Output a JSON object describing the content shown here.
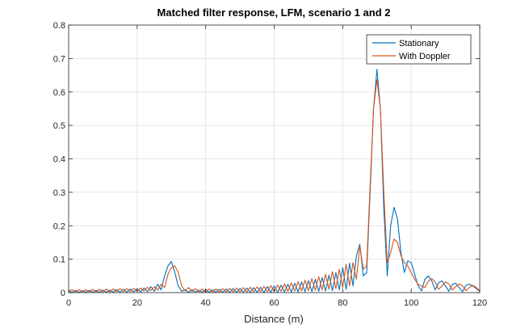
{
  "chart_data": {
    "type": "line",
    "title": "Matched filter response, LFM, scenario 1 and 2",
    "xlabel": "Distance (m)",
    "ylabel": "",
    "xlim": [
      0,
      120
    ],
    "ylim": [
      0,
      0.8
    ],
    "xticks": [
      0,
      20,
      40,
      60,
      80,
      100,
      120
    ],
    "yticks": [
      0,
      0.1,
      0.2,
      0.3,
      0.4,
      0.5,
      0.6,
      0.7,
      0.8
    ],
    "xtick_labels": [
      "0",
      "20",
      "40",
      "60",
      "80",
      "100",
      "120"
    ],
    "ytick_labels": [
      "0",
      "0.1",
      "0.2",
      "0.3",
      "0.4",
      "0.5",
      "0.6",
      "0.7",
      "0.8"
    ],
    "grid": true,
    "legend_position": "top-right",
    "series": [
      {
        "name": "Stationary",
        "color": "#0072BD",
        "points": [
          [
            0,
            0.005
          ],
          [
            1,
            0.001
          ],
          [
            2,
            0.006
          ],
          [
            3,
            0.001
          ],
          [
            4,
            0.006
          ],
          [
            5,
            0.001
          ],
          [
            6,
            0.007
          ],
          [
            7,
            0.001
          ],
          [
            8,
            0.007
          ],
          [
            9,
            0.001
          ],
          [
            10,
            0.008
          ],
          [
            11,
            0.001
          ],
          [
            12,
            0.008
          ],
          [
            13,
            0.001
          ],
          [
            14,
            0.009
          ],
          [
            15,
            0.001
          ],
          [
            16,
            0.01
          ],
          [
            17,
            0.001
          ],
          [
            18,
            0.011
          ],
          [
            19,
            0.002
          ],
          [
            20,
            0.012
          ],
          [
            21,
            0.002
          ],
          [
            22,
            0.014
          ],
          [
            23,
            0.003
          ],
          [
            24,
            0.018
          ],
          [
            25,
            0.004
          ],
          [
            26,
            0.025
          ],
          [
            27,
            0.008
          ],
          [
            28,
            0.05
          ],
          [
            29,
            0.08
          ],
          [
            30,
            0.093
          ],
          [
            31,
            0.06
          ],
          [
            32,
            0.02
          ],
          [
            33,
            0.004
          ],
          [
            34,
            0.008
          ],
          [
            35,
            0.001
          ],
          [
            36,
            0.009
          ],
          [
            37,
            0.001
          ],
          [
            38,
            0.008
          ],
          [
            39,
            0.001
          ],
          [
            40,
            0.009
          ],
          [
            41,
            0.001
          ],
          [
            42,
            0.009
          ],
          [
            43,
            0.001
          ],
          [
            44,
            0.01
          ],
          [
            45,
            0.001
          ],
          [
            46,
            0.011
          ],
          [
            47,
            0.001
          ],
          [
            48,
            0.012
          ],
          [
            49,
            0.001
          ],
          [
            50,
            0.013
          ],
          [
            51,
            0.001
          ],
          [
            52,
            0.014
          ],
          [
            53,
            0.001
          ],
          [
            54,
            0.015
          ],
          [
            55,
            0.001
          ],
          [
            56,
            0.016
          ],
          [
            57,
            0.001
          ],
          [
            58,
            0.018
          ],
          [
            59,
            0.001
          ],
          [
            60,
            0.02
          ],
          [
            61,
            0.001
          ],
          [
            62,
            0.022
          ],
          [
            63,
            0.002
          ],
          [
            64,
            0.025
          ],
          [
            65,
            0.002
          ],
          [
            66,
            0.028
          ],
          [
            67,
            0.002
          ],
          [
            68,
            0.032
          ],
          [
            69,
            0.003
          ],
          [
            70,
            0.036
          ],
          [
            71,
            0.003
          ],
          [
            72,
            0.04
          ],
          [
            73,
            0.004
          ],
          [
            74,
            0.045
          ],
          [
            75,
            0.005
          ],
          [
            76,
            0.052
          ],
          [
            77,
            0.006
          ],
          [
            78,
            0.06
          ],
          [
            79,
            0.008
          ],
          [
            80,
            0.075
          ],
          [
            81,
            0.01
          ],
          [
            82,
            0.088
          ],
          [
            83,
            0.02
          ],
          [
            84,
            0.11
          ],
          [
            85,
            0.145
          ],
          [
            86,
            0.05
          ],
          [
            87,
            0.06
          ],
          [
            88,
            0.3
          ],
          [
            89,
            0.55
          ],
          [
            90,
            0.668
          ],
          [
            91,
            0.55
          ],
          [
            92,
            0.25
          ],
          [
            93,
            0.05
          ],
          [
            94,
            0.2
          ],
          [
            95,
            0.255
          ],
          [
            96,
            0.22
          ],
          [
            97,
            0.12
          ],
          [
            98,
            0.06
          ],
          [
            99,
            0.095
          ],
          [
            100,
            0.09
          ],
          [
            101,
            0.055
          ],
          [
            102,
            0.02
          ],
          [
            103,
            0.005
          ],
          [
            104,
            0.04
          ],
          [
            105,
            0.05
          ],
          [
            106,
            0.035
          ],
          [
            107,
            0.008
          ],
          [
            108,
            0.03
          ],
          [
            109,
            0.035
          ],
          [
            110,
            0.02
          ],
          [
            111,
            0.004
          ],
          [
            112,
            0.025
          ],
          [
            113,
            0.028
          ],
          [
            114,
            0.015
          ],
          [
            115,
            0.003
          ],
          [
            116,
            0.022
          ],
          [
            117,
            0.025
          ],
          [
            118,
            0.02
          ],
          [
            119,
            0.012
          ],
          [
            120,
            0.004
          ]
        ]
      },
      {
        "name": "With Doppler",
        "color": "#D95319",
        "points": [
          [
            0,
            0.004
          ],
          [
            1,
            0.009
          ],
          [
            2,
            0.002
          ],
          [
            3,
            0.009
          ],
          [
            4,
            0.002
          ],
          [
            5,
            0.009
          ],
          [
            6,
            0.002
          ],
          [
            7,
            0.01
          ],
          [
            8,
            0.002
          ],
          [
            9,
            0.01
          ],
          [
            10,
            0.002
          ],
          [
            11,
            0.011
          ],
          [
            12,
            0.002
          ],
          [
            13,
            0.011
          ],
          [
            14,
            0.003
          ],
          [
            15,
            0.012
          ],
          [
            16,
            0.003
          ],
          [
            17,
            0.012
          ],
          [
            18,
            0.003
          ],
          [
            19,
            0.013
          ],
          [
            20,
            0.004
          ],
          [
            21,
            0.014
          ],
          [
            22,
            0.005
          ],
          [
            23,
            0.016
          ],
          [
            24,
            0.006
          ],
          [
            25,
            0.018
          ],
          [
            26,
            0.008
          ],
          [
            27,
            0.025
          ],
          [
            28,
            0.015
          ],
          [
            29,
            0.055
          ],
          [
            30,
            0.075
          ],
          [
            31,
            0.08
          ],
          [
            32,
            0.06
          ],
          [
            33,
            0.02
          ],
          [
            34,
            0.005
          ],
          [
            35,
            0.015
          ],
          [
            36,
            0.003
          ],
          [
            37,
            0.012
          ],
          [
            38,
            0.002
          ],
          [
            39,
            0.011
          ],
          [
            40,
            0.002
          ],
          [
            41,
            0.011
          ],
          [
            42,
            0.002
          ],
          [
            43,
            0.011
          ],
          [
            44,
            0.002
          ],
          [
            45,
            0.012
          ],
          [
            46,
            0.002
          ],
          [
            47,
            0.013
          ],
          [
            48,
            0.002
          ],
          [
            49,
            0.014
          ],
          [
            50,
            0.002
          ],
          [
            51,
            0.015
          ],
          [
            52,
            0.002
          ],
          [
            53,
            0.016
          ],
          [
            54,
            0.003
          ],
          [
            55,
            0.017
          ],
          [
            56,
            0.003
          ],
          [
            57,
            0.019
          ],
          [
            58,
            0.003
          ],
          [
            59,
            0.021
          ],
          [
            60,
            0.003
          ],
          [
            61,
            0.023
          ],
          [
            62,
            0.004
          ],
          [
            63,
            0.026
          ],
          [
            64,
            0.004
          ],
          [
            65,
            0.029
          ],
          [
            66,
            0.005
          ],
          [
            67,
            0.033
          ],
          [
            68,
            0.005
          ],
          [
            69,
            0.037
          ],
          [
            70,
            0.006
          ],
          [
            71,
            0.042
          ],
          [
            72,
            0.007
          ],
          [
            73,
            0.048
          ],
          [
            74,
            0.008
          ],
          [
            75,
            0.055
          ],
          [
            76,
            0.01
          ],
          [
            77,
            0.063
          ],
          [
            78,
            0.012
          ],
          [
            79,
            0.07
          ],
          [
            80,
            0.015
          ],
          [
            81,
            0.085
          ],
          [
            82,
            0.02
          ],
          [
            83,
            0.09
          ],
          [
            84,
            0.04
          ],
          [
            85,
            0.14
          ],
          [
            86,
            0.07
          ],
          [
            87,
            0.08
          ],
          [
            88,
            0.32
          ],
          [
            89,
            0.55
          ],
          [
            90,
            0.637
          ],
          [
            91,
            0.55
          ],
          [
            92,
            0.3
          ],
          [
            93,
            0.09
          ],
          [
            94,
            0.12
          ],
          [
            95,
            0.16
          ],
          [
            96,
            0.15
          ],
          [
            97,
            0.11
          ],
          [
            98,
            0.09
          ],
          [
            99,
            0.08
          ],
          [
            100,
            0.06
          ],
          [
            101,
            0.04
          ],
          [
            102,
            0.025
          ],
          [
            103,
            0.02
          ],
          [
            104,
            0.015
          ],
          [
            105,
            0.035
          ],
          [
            106,
            0.042
          ],
          [
            107,
            0.032
          ],
          [
            108,
            0.01
          ],
          [
            109,
            0.02
          ],
          [
            110,
            0.032
          ],
          [
            111,
            0.026
          ],
          [
            112,
            0.008
          ],
          [
            113,
            0.018
          ],
          [
            114,
            0.026
          ],
          [
            115,
            0.02
          ],
          [
            116,
            0.006
          ],
          [
            117,
            0.016
          ],
          [
            118,
            0.022
          ],
          [
            119,
            0.015
          ],
          [
            120,
            0.005
          ]
        ]
      }
    ]
  }
}
